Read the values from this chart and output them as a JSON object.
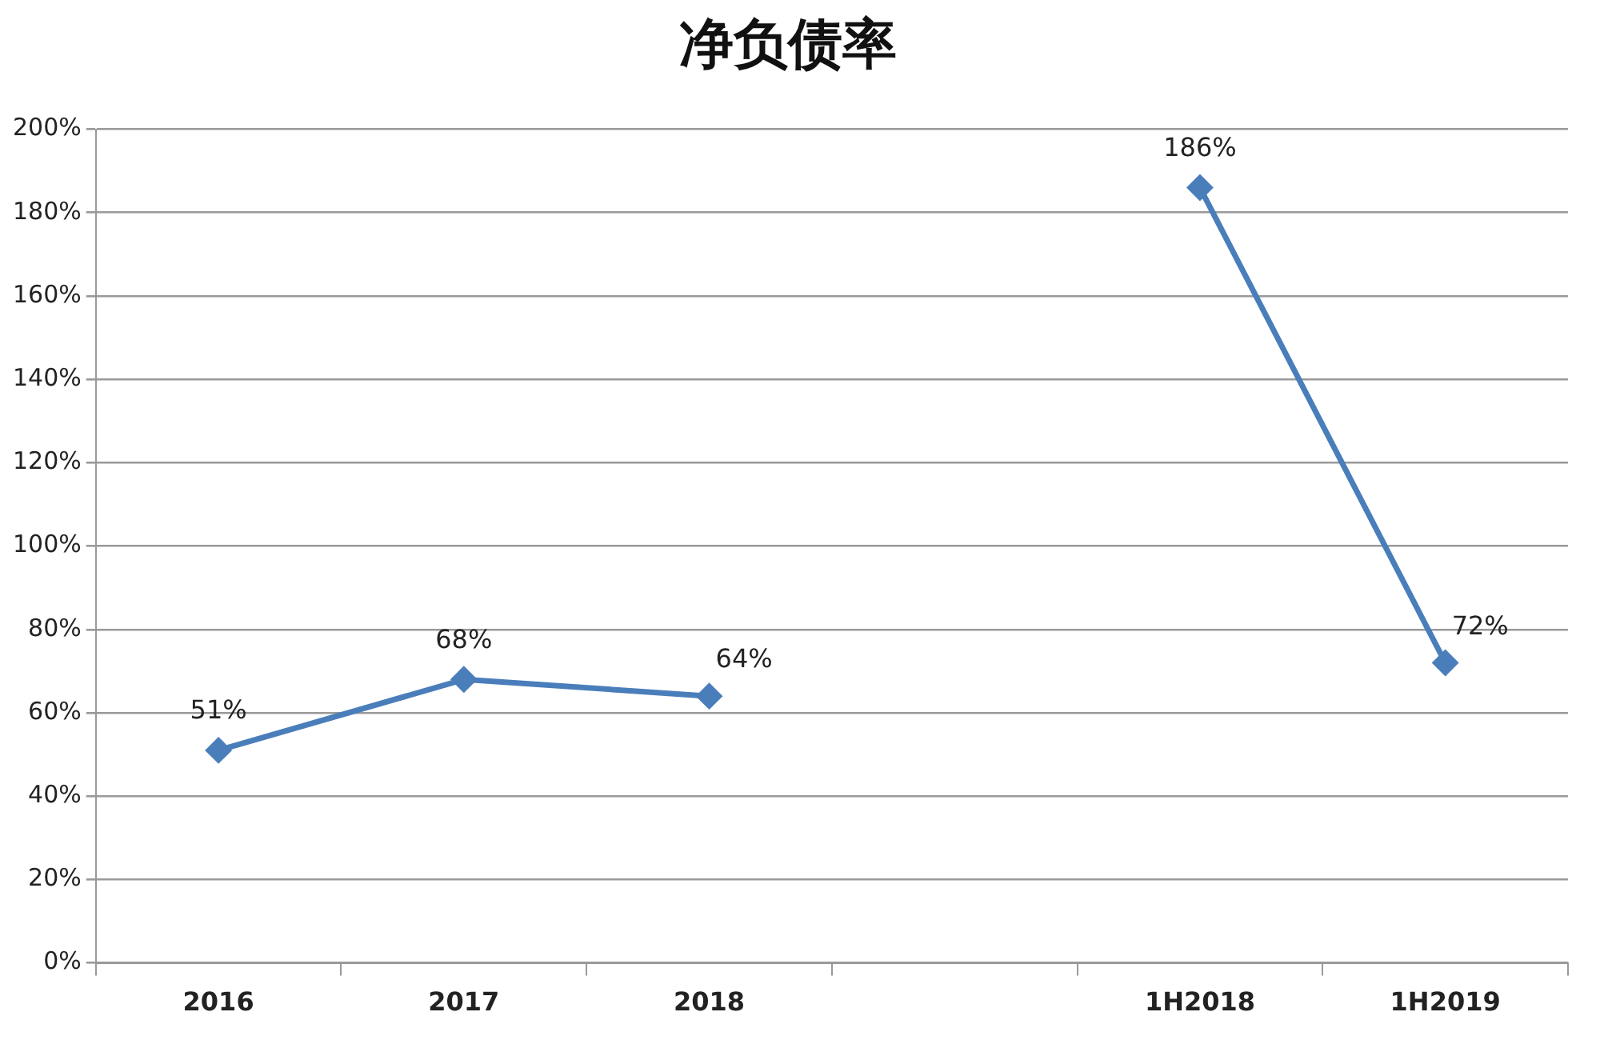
{
  "chart_data": {
    "type": "line",
    "title": "净负债率",
    "categories": [
      "2016",
      "2017",
      "2018",
      null,
      "1H2018",
      "1H2019"
    ],
    "series": [
      {
        "color": "#4a7ebb",
        "values": [
          51,
          68,
          64,
          null,
          186,
          72
        ],
        "value_labels": [
          "51%",
          "68%",
          "64%",
          null,
          "186%",
          "72%"
        ]
      }
    ],
    "ylim": [
      0,
      200
    ],
    "yticks": [
      {
        "value": 0,
        "label": "0%"
      },
      {
        "value": 20,
        "label": "20%"
      },
      {
        "value": 40,
        "label": "40%"
      },
      {
        "value": 60,
        "label": "60%"
      },
      {
        "value": 80,
        "label": "80%"
      },
      {
        "value": 100,
        "label": "100%"
      },
      {
        "value": 120,
        "label": "120%"
      },
      {
        "value": 140,
        "label": "140%"
      },
      {
        "value": 160,
        "label": "160%"
      },
      {
        "value": 180,
        "label": "180%"
      },
      {
        "value": 200,
        "label": "200%"
      }
    ],
    "grid": "y",
    "legend": false,
    "marker": "diamond",
    "line_style": "solid"
  }
}
